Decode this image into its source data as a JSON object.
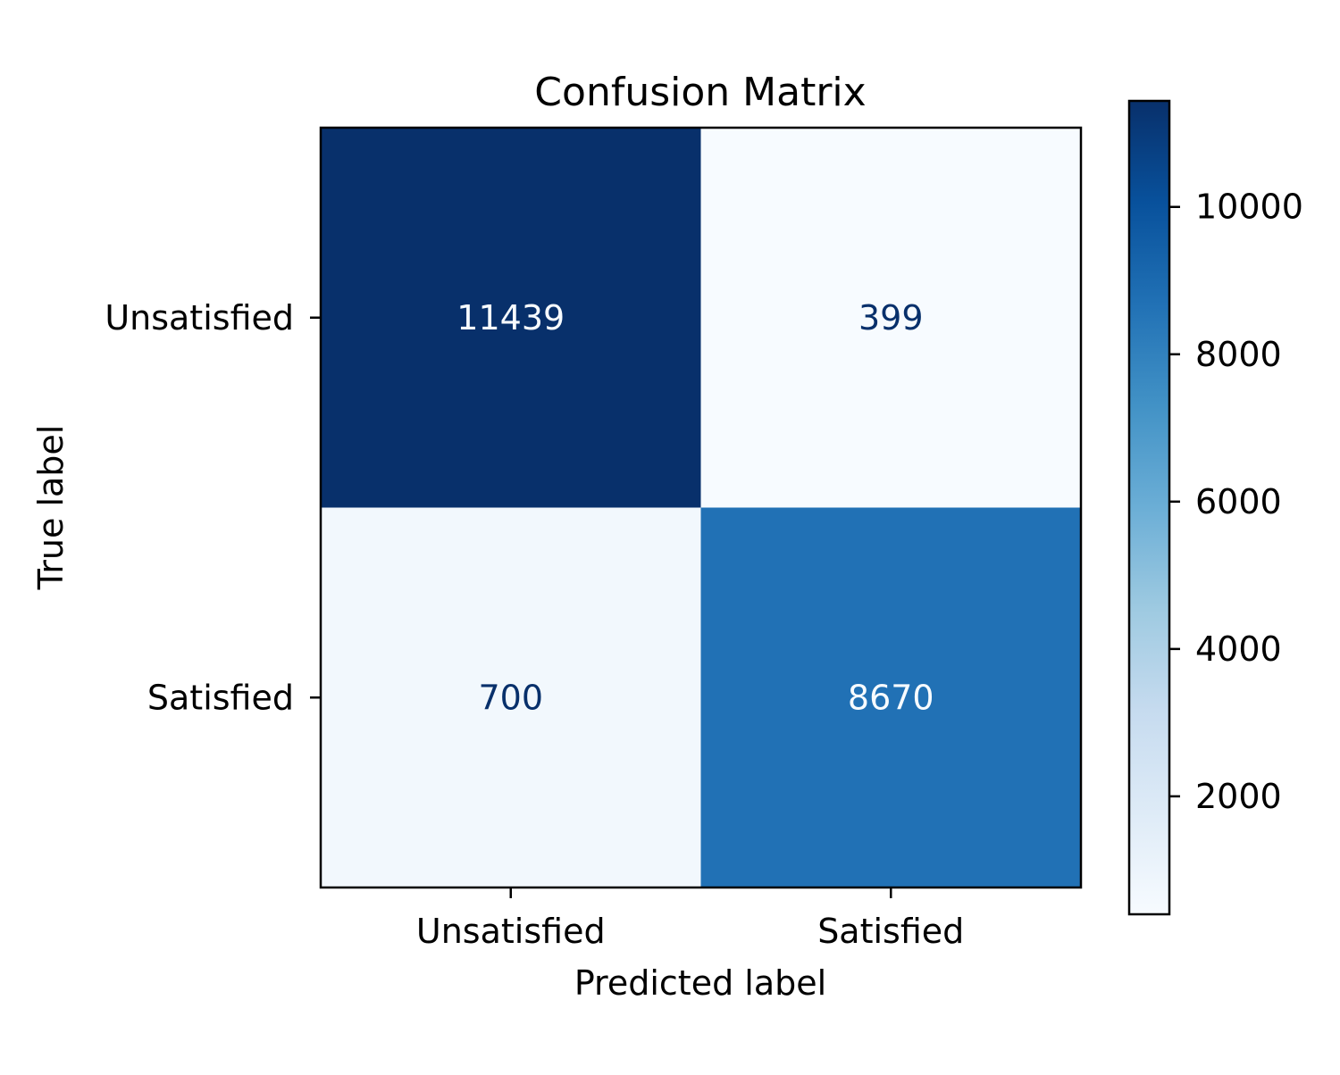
{
  "chart_data": {
    "type": "heatmap",
    "title": "Confusion Matrix",
    "xlabel": "Predicted label",
    "ylabel": "True label",
    "x_categories": [
      "Unsatisfied",
      "Satisfied"
    ],
    "y_categories": [
      "Unsatisfied",
      "Satisfied"
    ],
    "values": [
      [
        11439,
        399
      ],
      [
        700,
        8670
      ]
    ],
    "colormap": "Blues",
    "colorbar": {
      "range": [
        399,
        11439
      ],
      "ticks": [
        2000,
        4000,
        6000,
        8000,
        10000
      ],
      "tick_labels": [
        "2000",
        "4000",
        "6000",
        "8000",
        "10000"
      ]
    },
    "grid": false,
    "legend": "colorbar-right"
  }
}
